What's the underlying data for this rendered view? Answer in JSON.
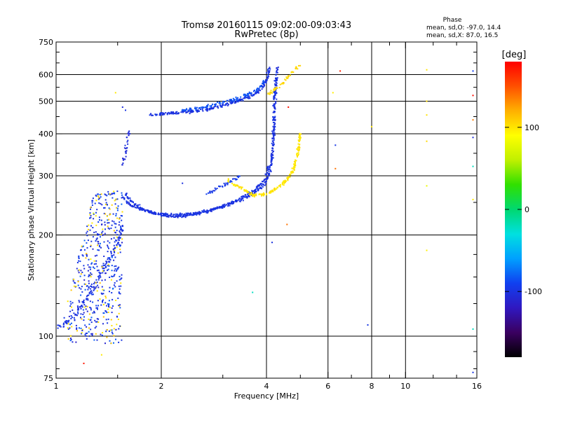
{
  "header": {
    "title_line1": "Tromsø 20160115 09:02:00-09:03:43",
    "title_line2": "RwPretec (8p)",
    "phase_stats_title": "Phase",
    "phase_stats_o": "mean, sd,O: -97.0, 14.4",
    "phase_stats_x": "mean, sd,X:  87.0, 16.5"
  },
  "colorbar": {
    "unit_label": "[deg]",
    "ticks": [
      {
        "value": 100,
        "label": "100"
      },
      {
        "value": 0,
        "label": "0"
      },
      {
        "value": -100,
        "label": "-100"
      }
    ],
    "range": [
      -180,
      180
    ],
    "palette": [
      "#000000",
      "#3a0060",
      "#3018c0",
      "#1040f0",
      "#00a0ff",
      "#00e0e0",
      "#00d870",
      "#30e000",
      "#c0f000",
      "#ffff00",
      "#ffb000",
      "#ff5000",
      "#ff0000"
    ]
  },
  "chart_data": {
    "type": "scatter",
    "title": "Tromsø 20160115 09:02:00-09:03:43",
    "subtitle": "RwPretec (8p)",
    "xlabel": "Frequency [MHz]",
    "ylabel": "Stationary phase Virtual Height [km]",
    "x_scale": "log",
    "y_scale": "log",
    "xlim": [
      1,
      16
    ],
    "ylim": [
      75,
      750
    ],
    "x_ticks": [
      1,
      2,
      4,
      6,
      8,
      10,
      16
    ],
    "y_ticks": [
      75,
      100,
      200,
      300,
      400,
      500,
      600,
      750
    ],
    "x_gridlines": [
      2,
      4,
      6,
      8,
      10
    ],
    "y_gridlines": [
      100,
      200,
      300,
      400,
      500,
      600
    ],
    "grid": true,
    "color_by": "phase [deg]",
    "traces": [
      {
        "kind": "curve",
        "phase": -100,
        "jitter": 6,
        "density": 9,
        "points": [
          [
            1.0,
            105
          ],
          [
            1.1,
            112
          ],
          [
            1.2,
            125
          ],
          [
            1.3,
            145
          ],
          [
            1.38,
            160
          ],
          [
            1.45,
            175
          ],
          [
            1.5,
            190
          ],
          [
            1.53,
            205
          ],
          [
            1.55,
            215
          ]
        ]
      },
      {
        "kind": "curve",
        "phase": -105,
        "jitter": 4,
        "density": 6,
        "points": [
          [
            1.55,
            320
          ],
          [
            1.58,
            350
          ],
          [
            1.6,
            380
          ],
          [
            1.62,
            410
          ]
        ]
      },
      {
        "kind": "curve",
        "phase": -100,
        "jitter": 3,
        "density": 12,
        "points": [
          [
            1.58,
            265
          ],
          [
            1.65,
            250
          ],
          [
            1.75,
            240
          ],
          [
            1.9,
            232
          ],
          [
            2.1,
            227
          ],
          [
            2.4,
            228
          ],
          [
            2.7,
            235
          ],
          [
            3.0,
            243
          ],
          [
            3.3,
            252
          ],
          [
            3.6,
            262
          ],
          [
            3.85,
            275
          ],
          [
            4.0,
            290
          ],
          [
            4.1,
            310
          ],
          [
            4.15,
            340
          ],
          [
            4.18,
            380
          ],
          [
            4.2,
            430
          ],
          [
            4.22,
            480
          ],
          [
            4.23,
            520
          ],
          [
            4.25,
            560
          ],
          [
            4.28,
            610
          ],
          [
            4.32,
            630
          ]
        ]
      },
      {
        "kind": "curve",
        "phase": -100,
        "jitter": 2.5,
        "density": 10,
        "points": [
          [
            1.55,
            260
          ],
          [
            1.62,
            246
          ],
          [
            1.75,
            238
          ],
          [
            1.95,
            232
          ],
          [
            2.2,
            230
          ],
          [
            2.5,
            232
          ],
          [
            2.8,
            238
          ],
          [
            3.1,
            247
          ],
          [
            3.4,
            258
          ],
          [
            3.7,
            272
          ],
          [
            3.95,
            292
          ],
          [
            4.05,
            320
          ]
        ]
      },
      {
        "kind": "curve",
        "phase": -100,
        "jitter": 3,
        "density": 12,
        "points": [
          [
            1.85,
            455
          ],
          [
            2.1,
            460
          ],
          [
            2.4,
            465
          ],
          [
            2.7,
            472
          ],
          [
            3.0,
            485
          ],
          [
            3.3,
            500
          ],
          [
            3.6,
            515
          ],
          [
            3.85,
            540
          ],
          [
            4.0,
            575
          ],
          [
            4.05,
            610
          ],
          [
            4.1,
            630
          ]
        ]
      },
      {
        "kind": "curve",
        "phase": -85,
        "jitter": 3,
        "density": 10,
        "points": [
          [
            2.3,
            470
          ],
          [
            2.6,
            478
          ],
          [
            2.9,
            492
          ],
          [
            3.2,
            505
          ],
          [
            3.5,
            520
          ],
          [
            3.8,
            545
          ],
          [
            3.95,
            575
          ]
        ]
      },
      {
        "kind": "curve",
        "phase": 100,
        "jitter": 3,
        "density": 12,
        "points": [
          [
            3.1,
            290
          ],
          [
            3.4,
            275
          ],
          [
            3.7,
            262
          ],
          [
            4.0,
            265
          ],
          [
            4.3,
            275
          ],
          [
            4.55,
            290
          ],
          [
            4.75,
            310
          ],
          [
            4.9,
            340
          ],
          [
            4.95,
            370
          ],
          [
            5.0,
            400
          ]
        ]
      },
      {
        "kind": "curve",
        "phase": 105,
        "jitter": 3,
        "density": 8,
        "points": [
          [
            4.0,
            520
          ],
          [
            4.2,
            540
          ],
          [
            4.4,
            560
          ],
          [
            4.6,
            590
          ],
          [
            4.8,
            620
          ],
          [
            5.0,
            640
          ]
        ]
      },
      {
        "kind": "curve",
        "phase": -95,
        "jitter": 3,
        "density": 8,
        "points": [
          [
            2.7,
            265
          ],
          [
            2.95,
            278
          ],
          [
            3.2,
            290
          ],
          [
            3.35,
            300
          ]
        ]
      },
      {
        "kind": "cloud",
        "x": [
          1.0,
          1.55
        ],
        "y": [
          95,
          270
        ],
        "count": 520,
        "phases": [
          -100,
          -100,
          -100,
          -90,
          -110,
          -80,
          100,
          110,
          -100,
          -95
        ]
      },
      {
        "kind": "sparse",
        "points": [
          [
            1.48,
            530
          ],
          [
            1.55,
            480
          ],
          [
            1.58,
            470
          ],
          [
            1.25,
            230
          ],
          [
            1.28,
            232
          ],
          [
            1.3,
            228
          ],
          [
            1.47,
            180
          ],
          [
            1.2,
            83
          ],
          [
            1.35,
            88
          ],
          [
            2.3,
            285
          ],
          [
            3.65,
            135
          ],
          [
            4.15,
            190
          ],
          [
            4.58,
            215
          ],
          [
            4.62,
            480
          ],
          [
            6.2,
            530
          ],
          [
            6.3,
            370
          ],
          [
            6.3,
            315
          ],
          [
            6.5,
            615
          ],
          [
            7.8,
            108
          ],
          [
            8.0,
            420
          ],
          [
            11.5,
            620
          ],
          [
            11.5,
            500
          ],
          [
            11.5,
            455
          ],
          [
            11.5,
            380
          ],
          [
            11.5,
            280
          ],
          [
            11.5,
            180
          ],
          [
            15.6,
            615
          ],
          [
            15.6,
            520
          ],
          [
            15.6,
            440
          ],
          [
            15.6,
            390
          ],
          [
            15.6,
            320
          ],
          [
            15.6,
            255
          ],
          [
            15.6,
            105
          ],
          [
            15.6,
            78
          ]
        ],
        "phases": [
          100,
          -100,
          -100,
          100,
          60,
          100,
          100,
          170,
          100,
          -100,
          -20,
          -100,
          140,
          170,
          100,
          -100,
          140,
          170,
          -100,
          100,
          100,
          100,
          100,
          100,
          80,
          100,
          -90,
          170,
          140,
          -100,
          -20,
          100,
          -20,
          -100
        ]
      }
    ]
  }
}
